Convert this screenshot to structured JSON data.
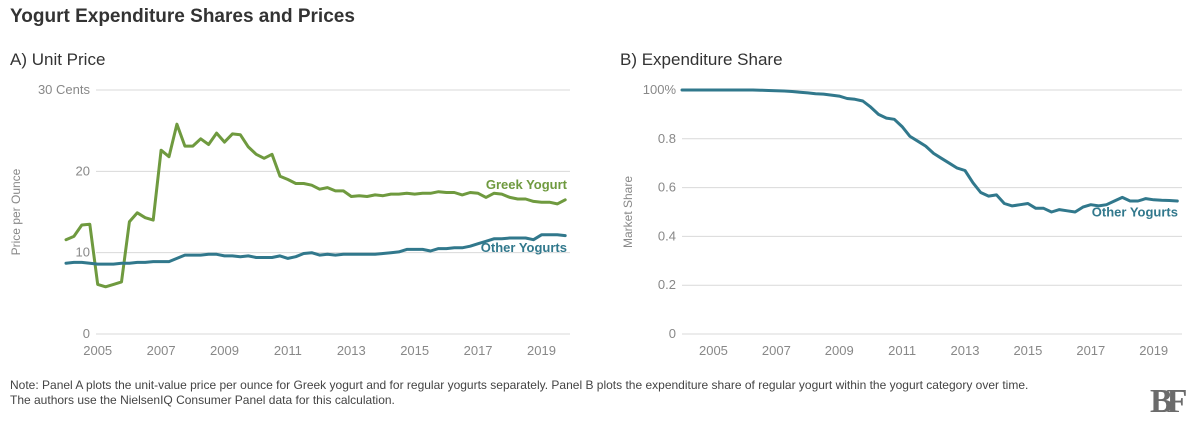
{
  "title": "Yogurt Expenditure Shares and Prices",
  "note_lines": [
    "Note: Panel A plots the unit-value price per ounce for Greek yogurt and for regular yogurts separately. Panel B plots the expenditure share of regular yogurt within the yogurt category over time.",
    "The authors use the NielsenIQ Consumer Panel data for this calculation."
  ],
  "logo_text": "BF",
  "colors": {
    "greek": "#6f9a3f",
    "other": "#31788c",
    "grid": "#d9d9d9",
    "axis_text": "#888888"
  },
  "chart_data": [
    {
      "type": "line",
      "title": "A) Unit Price",
      "ylabel": "Price per Ounce",
      "ylim": [
        0,
        30
      ],
      "xlim": [
        2004,
        2019.9
      ],
      "y_ticks": [
        {
          "value": 0,
          "label": "0"
        },
        {
          "value": 10,
          "label": "10"
        },
        {
          "value": 20,
          "label": "20"
        },
        {
          "value": 30,
          "label": "30 Cents"
        }
      ],
      "x_ticks": [
        {
          "value": 2005,
          "label": "2005"
        },
        {
          "value": 2007,
          "label": "2007"
        },
        {
          "value": 2009,
          "label": "2009"
        },
        {
          "value": 2011,
          "label": "2011"
        },
        {
          "value": 2013,
          "label": "2013"
        },
        {
          "value": 2015,
          "label": "2015"
        },
        {
          "value": 2017,
          "label": "2017"
        },
        {
          "value": 2019,
          "label": "2019"
        }
      ],
      "grid": "horizontal",
      "series": [
        {
          "name": "Greek Yogurt",
          "color": "#6f9a3f",
          "x": [
            2004.0,
            2004.25,
            2004.5,
            2004.75,
            2005.0,
            2005.25,
            2005.5,
            2005.75,
            2006.0,
            2006.25,
            2006.5,
            2006.75,
            2007.0,
            2007.25,
            2007.5,
            2007.75,
            2008.0,
            2008.25,
            2008.5,
            2008.75,
            2009.0,
            2009.25,
            2009.5,
            2009.75,
            2010.0,
            2010.25,
            2010.5,
            2010.75,
            2011.0,
            2011.25,
            2011.5,
            2011.75,
            2012.0,
            2012.25,
            2012.5,
            2012.75,
            2013.0,
            2013.25,
            2013.5,
            2013.75,
            2014.0,
            2014.25,
            2014.5,
            2014.75,
            2015.0,
            2015.25,
            2015.5,
            2015.75,
            2016.0,
            2016.25,
            2016.5,
            2016.75,
            2017.0,
            2017.25,
            2017.5,
            2017.75,
            2018.0,
            2018.25,
            2018.5,
            2018.75,
            2019.0,
            2019.25,
            2019.5,
            2019.75
          ],
          "values": [
            11.6,
            12.0,
            13.4,
            13.5,
            6.1,
            5.8,
            6.1,
            6.4,
            13.8,
            14.9,
            14.3,
            14.0,
            22.6,
            21.8,
            25.8,
            23.1,
            23.1,
            24.0,
            23.3,
            24.7,
            23.6,
            24.6,
            24.5,
            23.0,
            22.1,
            21.6,
            22.1,
            19.4,
            19.0,
            18.5,
            18.5,
            18.3,
            17.8,
            18.0,
            17.6,
            17.6,
            16.9,
            17.0,
            16.9,
            17.1,
            17.0,
            17.2,
            17.2,
            17.3,
            17.2,
            17.3,
            17.3,
            17.5,
            17.4,
            17.4,
            17.1,
            17.4,
            17.3,
            16.8,
            17.3,
            17.2,
            16.8,
            16.6,
            16.6,
            16.3,
            16.2,
            16.2,
            16.0,
            16.5
          ],
          "label_value": 18.3
        },
        {
          "name": "Other Yogurts",
          "color": "#31788c",
          "x": [
            2004.0,
            2004.25,
            2004.5,
            2004.75,
            2005.0,
            2005.25,
            2005.5,
            2005.75,
            2006.0,
            2006.25,
            2006.5,
            2006.75,
            2007.0,
            2007.25,
            2007.5,
            2007.75,
            2008.0,
            2008.25,
            2008.5,
            2008.75,
            2009.0,
            2009.25,
            2009.5,
            2009.75,
            2010.0,
            2010.25,
            2010.5,
            2010.75,
            2011.0,
            2011.25,
            2011.5,
            2011.75,
            2012.0,
            2012.25,
            2012.5,
            2012.75,
            2013.0,
            2013.25,
            2013.5,
            2013.75,
            2014.0,
            2014.25,
            2014.5,
            2014.75,
            2015.0,
            2015.25,
            2015.5,
            2015.75,
            2016.0,
            2016.25,
            2016.5,
            2016.75,
            2017.0,
            2017.25,
            2017.5,
            2017.75,
            2018.0,
            2018.25,
            2018.5,
            2018.75,
            2019.0,
            2019.25,
            2019.5,
            2019.75
          ],
          "values": [
            8.7,
            8.8,
            8.8,
            8.7,
            8.6,
            8.6,
            8.6,
            8.7,
            8.7,
            8.8,
            8.8,
            8.9,
            8.9,
            8.9,
            9.3,
            9.7,
            9.7,
            9.7,
            9.8,
            9.8,
            9.6,
            9.6,
            9.5,
            9.6,
            9.4,
            9.4,
            9.4,
            9.6,
            9.3,
            9.5,
            9.9,
            10.0,
            9.7,
            9.8,
            9.7,
            9.8,
            9.8,
            9.8,
            9.8,
            9.8,
            9.9,
            10.0,
            10.1,
            10.4,
            10.4,
            10.4,
            10.2,
            10.5,
            10.5,
            10.6,
            10.6,
            10.8,
            11.1,
            11.4,
            11.7,
            11.7,
            11.8,
            11.8,
            11.8,
            11.6,
            12.2,
            12.2,
            12.2,
            12.1
          ],
          "label_value": 10.6
        }
      ]
    },
    {
      "type": "line",
      "title": "B) Expenditure Share",
      "ylabel": "Market Share",
      "ylim": [
        0,
        1
      ],
      "xlim": [
        2004,
        2019.9
      ],
      "y_ticks": [
        {
          "value": 0,
          "label": "0"
        },
        {
          "value": 0.2,
          "label": "0.2"
        },
        {
          "value": 0.4,
          "label": "0.4"
        },
        {
          "value": 0.6,
          "label": "0.6"
        },
        {
          "value": 0.8,
          "label": "0.8"
        },
        {
          "value": 1.0,
          "label": "100%"
        }
      ],
      "x_ticks": [
        {
          "value": 2005,
          "label": "2005"
        },
        {
          "value": 2007,
          "label": "2007"
        },
        {
          "value": 2009,
          "label": "2009"
        },
        {
          "value": 2011,
          "label": "2011"
        },
        {
          "value": 2013,
          "label": "2013"
        },
        {
          "value": 2015,
          "label": "2015"
        },
        {
          "value": 2017,
          "label": "2017"
        },
        {
          "value": 2019,
          "label": "2019"
        }
      ],
      "grid": "horizontal",
      "series": [
        {
          "name": "Other Yogurts",
          "color": "#31788c",
          "x": [
            2004.0,
            2004.25,
            2004.5,
            2004.75,
            2005.0,
            2005.25,
            2005.5,
            2005.75,
            2006.0,
            2006.25,
            2006.5,
            2006.75,
            2007.0,
            2007.25,
            2007.5,
            2007.75,
            2008.0,
            2008.25,
            2008.5,
            2008.75,
            2009.0,
            2009.25,
            2009.5,
            2009.75,
            2010.0,
            2010.25,
            2010.5,
            2010.75,
            2011.0,
            2011.25,
            2011.5,
            2011.75,
            2012.0,
            2012.25,
            2012.5,
            2012.75,
            2013.0,
            2013.25,
            2013.5,
            2013.75,
            2014.0,
            2014.25,
            2014.5,
            2014.75,
            2015.0,
            2015.25,
            2015.5,
            2015.75,
            2016.0,
            2016.25,
            2016.5,
            2016.75,
            2017.0,
            2017.25,
            2017.5,
            2017.75,
            2018.0,
            2018.25,
            2018.5,
            2018.75,
            2019.0,
            2019.25,
            2019.5,
            2019.75
          ],
          "values": [
            1.0,
            1.0,
            1.0,
            1.0,
            1.0,
            1.0,
            1.0,
            1.0,
            1.0,
            1.0,
            0.999,
            0.998,
            0.997,
            0.996,
            0.994,
            0.991,
            0.988,
            0.985,
            0.983,
            0.979,
            0.975,
            0.965,
            0.962,
            0.955,
            0.93,
            0.9,
            0.885,
            0.88,
            0.85,
            0.81,
            0.79,
            0.77,
            0.74,
            0.72,
            0.7,
            0.68,
            0.67,
            0.62,
            0.58,
            0.565,
            0.57,
            0.535,
            0.525,
            0.53,
            0.535,
            0.515,
            0.515,
            0.5,
            0.51,
            0.505,
            0.5,
            0.52,
            0.53,
            0.525,
            0.53,
            0.545,
            0.56,
            0.545,
            0.545,
            0.555,
            0.55,
            0.548,
            0.547,
            0.545
          ],
          "label_value": 0.497
        }
      ]
    }
  ]
}
